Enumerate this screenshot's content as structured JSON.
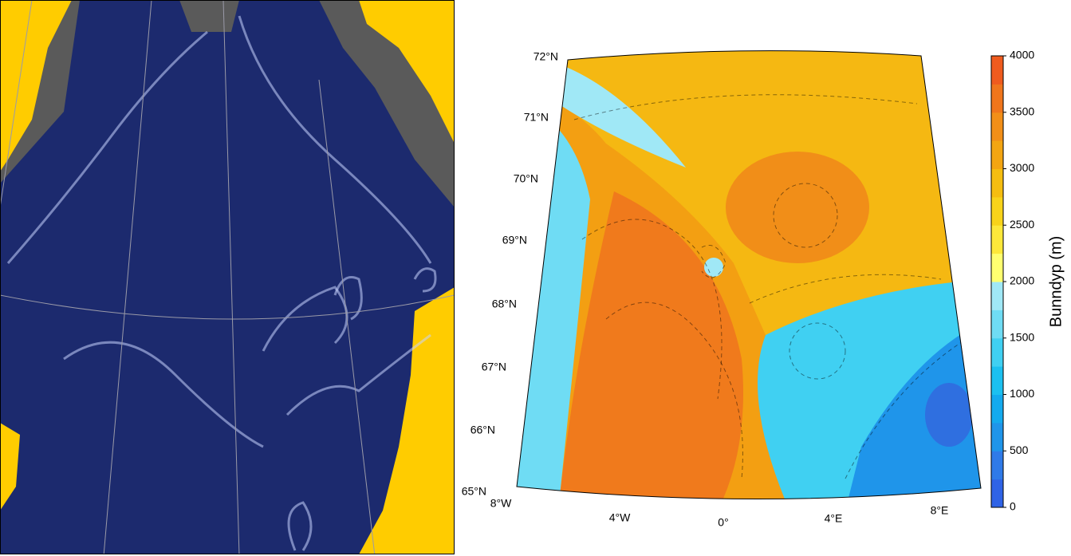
{
  "right_map": {
    "lat_labels": [
      "72°N",
      "71°N",
      "70°N",
      "69°N",
      "68°N",
      "67°N",
      "66°N",
      "65°N"
    ],
    "lon_labels": [
      "8°W",
      "4°W",
      "0°",
      "4°E",
      "8°E"
    ],
    "colorbar": {
      "label": "Bunndyp (m)",
      "lim": [
        0,
        4000
      ],
      "ticks": [
        0,
        500,
        1000,
        1500,
        2000,
        2500,
        3000,
        3500,
        4000
      ],
      "colors": [
        "#2f63e6",
        "#2f7ae8",
        "#1f95ea",
        "#14aaee",
        "#1cc0f0",
        "#40d0f2",
        "#6fdcf4",
        "#a0e8f6",
        "#ffff70",
        "#fde83a",
        "#f8d31a",
        "#f5bd10",
        "#f3a512",
        "#f28f18",
        "#f0761c",
        "#ef5b1e"
      ]
    }
  }
}
